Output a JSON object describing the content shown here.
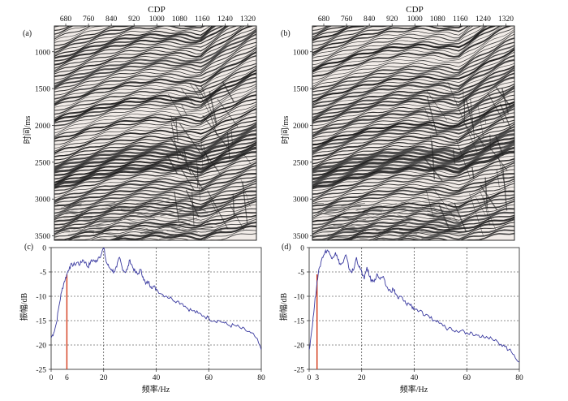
{
  "figure": {
    "panels": [
      {
        "id": "a",
        "label": "(a)",
        "type": "seismic_section",
        "top_axis_title": "CDP",
        "cdp_ticks": [
          "680",
          "760",
          "840",
          "920",
          "1000",
          "1080",
          "1160",
          "1240",
          "1320"
        ],
        "ylabel": "时间/ms",
        "time_ticks": [
          "1000",
          "1500",
          "2000",
          "2500",
          "3000",
          "3500"
        ]
      },
      {
        "id": "b",
        "label": "(b)",
        "type": "seismic_section",
        "top_axis_title": "CDP",
        "cdp_ticks": [
          "680",
          "760",
          "840",
          "920",
          "1000",
          "1080",
          "1160",
          "1240",
          "1320"
        ],
        "ylabel": "时间/ms",
        "time_ticks": [
          "1000",
          "1500",
          "2000",
          "2500",
          "3000",
          "3500"
        ]
      },
      {
        "id": "c",
        "label": "(c)",
        "type": "spectrum",
        "ylabel": "振幅/dB",
        "xlabel": "频率/Hz",
        "x_ticks": [
          "0",
          "20",
          "40",
          "60",
          "80"
        ],
        "y_ticks": [
          "0",
          "-5",
          "-10",
          "-15",
          "-20",
          "-25"
        ],
        "extra_x_tick": "6",
        "marker_frequency_hz": 6
      },
      {
        "id": "d",
        "label": "(d)",
        "type": "spectrum",
        "ylabel": "振幅/dB",
        "xlabel": "频率/Hz",
        "x_ticks": [
          "0",
          "20",
          "40",
          "60",
          "80"
        ],
        "y_ticks": [
          "0",
          "-5",
          "-10",
          "-15",
          "-20",
          "-25"
        ],
        "extra_x_tick": "3",
        "marker_frequency_hz": 3
      }
    ],
    "colors": {
      "spectrum_line": "#3a3aa0",
      "marker_line": "#d43a1a",
      "seismic_black": "#111111",
      "grid": "#222222"
    }
  },
  "chart_data": [
    {
      "type": "line",
      "panel": "c",
      "xlabel": "频率/Hz",
      "ylabel": "振幅/dB",
      "xlim": [
        0,
        80
      ],
      "ylim": [
        -25,
        0
      ],
      "grid": true,
      "series": [
        {
          "x": [
            0,
            1,
            2,
            3,
            4,
            5,
            6,
            7,
            8,
            9,
            10,
            11,
            12,
            13,
            14,
            15,
            16,
            17,
            18,
            19,
            20,
            21,
            22,
            23,
            24,
            25,
            26,
            27,
            28,
            29,
            30,
            31,
            32,
            33,
            34,
            35,
            36,
            37,
            38,
            39,
            40,
            42,
            44,
            46,
            48,
            50,
            52,
            54,
            56,
            58,
            60,
            62,
            64,
            66,
            68,
            70,
            72,
            74,
            76,
            78,
            80
          ],
          "y": [
            -18.5,
            -17.5,
            -15.5,
            -12,
            -9,
            -7,
            -5.5,
            -4,
            -3.5,
            -3.5,
            -3,
            -3.5,
            -2.5,
            -3,
            -4,
            -3,
            -2.5,
            -3,
            -2,
            -1.5,
            0,
            -3,
            -4,
            -4.5,
            -5,
            -4,
            -2,
            -4,
            -5,
            -4.5,
            -2.5,
            -4,
            -5,
            -5.5,
            -4.5,
            -6,
            -7.5,
            -7,
            -8,
            -8,
            -8.5,
            -9.5,
            -10,
            -10.5,
            -11,
            -11.5,
            -12.5,
            -13,
            -13.5,
            -14,
            -14.5,
            -15,
            -15,
            -15.5,
            -16,
            -16,
            -16.5,
            -17,
            -17.5,
            -18.5,
            -21
          ]
        }
      ]
    },
    {
      "type": "line",
      "panel": "d",
      "xlabel": "频率/Hz",
      "ylabel": "振幅/dB",
      "xlim": [
        0,
        80
      ],
      "ylim": [
        -25,
        0
      ],
      "grid": true,
      "series": [
        {
          "x": [
            0,
            1,
            2,
            3,
            4,
            5,
            6,
            7,
            8,
            9,
            10,
            11,
            12,
            13,
            14,
            15,
            16,
            17,
            18,
            19,
            20,
            21,
            22,
            23,
            24,
            25,
            26,
            27,
            28,
            29,
            30,
            31,
            32,
            33,
            34,
            35,
            36,
            37,
            38,
            39,
            40,
            42,
            44,
            46,
            48,
            50,
            52,
            54,
            56,
            58,
            60,
            62,
            64,
            66,
            68,
            70,
            72,
            74,
            76,
            78,
            80
          ],
          "y": [
            -21,
            -17,
            -12,
            -7,
            -4,
            -2,
            -1,
            -0.5,
            -1.5,
            -2,
            -1,
            -2.5,
            -3.5,
            -3,
            -1.5,
            -4,
            -5,
            -4.5,
            -2,
            -4,
            -5,
            -6.5,
            -4,
            -6,
            -7,
            -6.5,
            -5.5,
            -6.5,
            -6,
            -7.5,
            -8.5,
            -9,
            -8.5,
            -9.5,
            -10.5,
            -10,
            -11,
            -11.5,
            -11.5,
            -12,
            -12.5,
            -13,
            -14,
            -14.5,
            -15,
            -15.5,
            -16.5,
            -16.5,
            -17,
            -17,
            -17.5,
            -17.5,
            -18,
            -18,
            -18.5,
            -19,
            -19.5,
            -20,
            -21,
            -22,
            -23.5
          ]
        }
      ]
    }
  ]
}
